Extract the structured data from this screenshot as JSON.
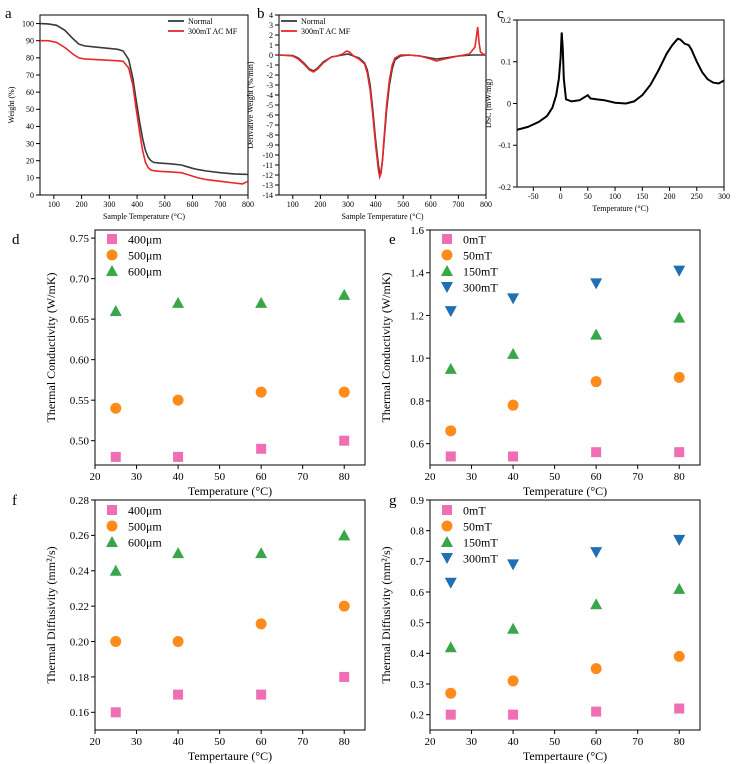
{
  "colors": {
    "normal": "#3a3a3a",
    "acmf": "#e8282b",
    "dsc": "#000000",
    "pink": "#f06eb4",
    "orange": "#ff8c1a",
    "green": "#3aa64a",
    "blue": "#1e6fb4"
  },
  "chart_data": [
    {
      "panel": "a",
      "type": "line",
      "xlabel": "Sample Temperature (°C)",
      "ylabel": "Weight (%)",
      "xlim": [
        50,
        800
      ],
      "ylim": [
        0,
        105
      ],
      "xticks": [
        100,
        200,
        300,
        400,
        500,
        600,
        700,
        800
      ],
      "yticks": [
        0,
        10,
        20,
        30,
        40,
        50,
        60,
        70,
        80,
        90,
        100
      ],
      "legend": "top-right",
      "series": [
        {
          "name": "Normal",
          "color_key": "normal",
          "x": [
            50,
            80,
            110,
            140,
            170,
            190,
            210,
            250,
            300,
            330,
            350,
            370,
            385,
            395,
            410,
            420,
            430,
            440,
            450,
            460,
            480,
            520,
            560,
            580,
            600,
            620,
            650,
            700,
            750,
            800
          ],
          "y": [
            100,
            99.8,
            99,
            96,
            91,
            88,
            87,
            86.3,
            85.5,
            85,
            84,
            79,
            68,
            57,
            42,
            33,
            26,
            22,
            20,
            19,
            18.6,
            18.2,
            17.5,
            16.5,
            15.6,
            14.8,
            14,
            13,
            12.3,
            12
          ]
        },
        {
          "name": "300mT AC MF",
          "color_key": "acmf",
          "x": [
            50,
            80,
            110,
            140,
            170,
            190,
            210,
            250,
            300,
            330,
            350,
            370,
            385,
            395,
            410,
            420,
            430,
            440,
            450,
            460,
            480,
            520,
            560,
            580,
            600,
            620,
            650,
            700,
            750,
            780,
            800
          ],
          "y": [
            90,
            90,
            89,
            86,
            82,
            80,
            79.4,
            79,
            78.6,
            78.3,
            78,
            74,
            64,
            52,
            36,
            26,
            19,
            16,
            14.6,
            14.2,
            13.8,
            13.5,
            13,
            12,
            11,
            10,
            9,
            8,
            7,
            6.5,
            8
          ]
        }
      ]
    },
    {
      "panel": "b",
      "type": "line",
      "xlabel": "Sample Temperature (°C)",
      "ylabel": "Derivative Weight (%/min)",
      "xlim": [
        50,
        800
      ],
      "ylim": [
        -14,
        4
      ],
      "xticks": [
        100,
        200,
        300,
        400,
        500,
        600,
        700,
        800
      ],
      "yticks": [
        -14,
        -13,
        -12,
        -11,
        -10,
        -9,
        -8,
        -7,
        -6,
        -5,
        -4,
        -3,
        -2,
        -1,
        0,
        1,
        2,
        3,
        4
      ],
      "legend": "top-left",
      "series": [
        {
          "name": "Normal",
          "color_key": "normal",
          "x": [
            50,
            100,
            120,
            140,
            160,
            175,
            190,
            210,
            240,
            260,
            280,
            300,
            320,
            340,
            360,
            370,
            380,
            390,
            400,
            410,
            415,
            420,
            425,
            430,
            440,
            450,
            460,
            470,
            490,
            520,
            560,
            600,
            620,
            650,
            700,
            750,
            780,
            800
          ],
          "y": [
            0,
            -0.05,
            -0.3,
            -0.8,
            -1.4,
            -1.6,
            -1.3,
            -0.7,
            -0.2,
            -0.1,
            0,
            0.1,
            -0.1,
            -0.3,
            -0.8,
            -1.5,
            -3,
            -5.5,
            -8.5,
            -11,
            -11.8,
            -11.6,
            -10.5,
            -8.8,
            -5.5,
            -3,
            -1.4,
            -0.5,
            -0.1,
            0,
            -0.1,
            -0.3,
            -0.4,
            -0.3,
            -0.1,
            0,
            0,
            0
          ]
        },
        {
          "name": "300mT AC MF",
          "color_key": "acmf",
          "x": [
            50,
            100,
            120,
            140,
            160,
            175,
            190,
            210,
            240,
            260,
            280,
            295,
            305,
            320,
            340,
            360,
            370,
            380,
            390,
            400,
            410,
            415,
            420,
            425,
            430,
            440,
            450,
            460,
            470,
            490,
            520,
            560,
            600,
            620,
            650,
            700,
            740,
            760,
            770,
            775,
            780,
            790,
            800
          ],
          "y": [
            0,
            -0.1,
            -0.4,
            -0.9,
            -1.5,
            -1.7,
            -1.4,
            -0.8,
            -0.2,
            -0.1,
            0.1,
            0.4,
            0.3,
            -0.1,
            -0.4,
            -0.9,
            -1.8,
            -3.5,
            -6,
            -9,
            -11.5,
            -12.2,
            -11.8,
            -10.5,
            -8.5,
            -5,
            -2.5,
            -1,
            -0.3,
            0,
            0,
            -0.1,
            -0.4,
            -0.6,
            -0.4,
            -0.1,
            0.1,
            0.8,
            2.8,
            1.2,
            0.3,
            0.1,
            0
          ]
        }
      ]
    },
    {
      "panel": "c",
      "type": "line",
      "xlabel": "Temperature (°C)",
      "ylabel": "DSC (mW/mg)",
      "xlim": [
        -80,
        300
      ],
      "ylim": [
        -0.2,
        0.2
      ],
      "xticks": [
        -50,
        0,
        50,
        100,
        150,
        200,
        250,
        300
      ],
      "yticks": [
        -0.2,
        -0.1,
        0.0,
        0.1,
        0.2
      ],
      "series": [
        {
          "name": "",
          "color_key": "dsc",
          "x": [
            -80,
            -60,
            -40,
            -25,
            -15,
            -8,
            -3,
            0,
            2,
            4,
            6,
            10,
            20,
            35,
            45,
            50,
            55,
            65,
            80,
            100,
            120,
            135,
            150,
            165,
            180,
            195,
            205,
            215,
            220,
            228,
            235,
            240,
            250,
            260,
            270,
            280,
            290,
            300
          ],
          "y": [
            -0.063,
            -0.056,
            -0.044,
            -0.03,
            -0.01,
            0.02,
            0.06,
            0.11,
            0.17,
            0.13,
            0.06,
            0.01,
            0.005,
            0.008,
            0.016,
            0.02,
            0.012,
            0.01,
            0.008,
            0.002,
            0,
            0.005,
            0.02,
            0.045,
            0.08,
            0.12,
            0.14,
            0.155,
            0.153,
            0.143,
            0.14,
            0.13,
            0.1,
            0.075,
            0.058,
            0.05,
            0.048,
            0.055
          ]
        }
      ]
    },
    {
      "panel": "d",
      "type": "scatter",
      "xlabel": "Temperature (°C)",
      "ylabel": "Thermal Conductivity (W/mK)",
      "xlim": [
        20,
        85
      ],
      "ylim": [
        0.47,
        0.76
      ],
      "xticks": [
        20,
        30,
        40,
        50,
        60,
        70,
        80
      ],
      "yticks": [
        0.5,
        0.55,
        0.6,
        0.65,
        0.7,
        0.75
      ],
      "ytick_labels": [
        "0.50",
        "0.55",
        "0.60",
        "0.65",
        "0.70",
        "0.75"
      ],
      "legend": "top-left",
      "series": [
        {
          "name": "400μm",
          "marker": "square",
          "color_key": "pink",
          "x": [
            25,
            40,
            60,
            80
          ],
          "y": [
            0.48,
            0.48,
            0.49,
            0.5
          ]
        },
        {
          "name": "500μm",
          "marker": "circle",
          "color_key": "orange",
          "x": [
            25,
            40,
            60,
            80
          ],
          "y": [
            0.54,
            0.55,
            0.56,
            0.56
          ]
        },
        {
          "name": "600μm",
          "marker": "triangle-up",
          "color_key": "green",
          "x": [
            25,
            40,
            60,
            80
          ],
          "y": [
            0.66,
            0.67,
            0.67,
            0.68
          ]
        }
      ]
    },
    {
      "panel": "e",
      "type": "scatter",
      "xlabel": "Temperature (°C)",
      "ylabel": "Thermal Conductivity (W/mK)",
      "xlim": [
        20,
        85
      ],
      "ylim": [
        0.5,
        1.6
      ],
      "xticks": [
        20,
        30,
        40,
        50,
        60,
        70,
        80
      ],
      "yticks": [
        0.6,
        0.8,
        1.0,
        1.2,
        1.4,
        1.6
      ],
      "ytick_labels": [
        "0.6",
        "0.8",
        "1.0",
        "1.2",
        "1.4",
        "1.6"
      ],
      "legend": "top-left",
      "series": [
        {
          "name": "0mT",
          "marker": "square",
          "color_key": "pink",
          "x": [
            25,
            40,
            60,
            80
          ],
          "y": [
            0.54,
            0.54,
            0.56,
            0.56
          ]
        },
        {
          "name": "50mT",
          "marker": "circle",
          "color_key": "orange",
          "x": [
            25,
            40,
            60,
            80
          ],
          "y": [
            0.66,
            0.78,
            0.89,
            0.91
          ]
        },
        {
          "name": "150mT",
          "marker": "triangle-up",
          "color_key": "green",
          "x": [
            25,
            40,
            60,
            80
          ],
          "y": [
            0.95,
            1.02,
            1.11,
            1.19
          ]
        },
        {
          "name": "300mT",
          "marker": "triangle-down",
          "color_key": "blue",
          "x": [
            25,
            40,
            60,
            80
          ],
          "y": [
            1.22,
            1.28,
            1.35,
            1.41
          ]
        }
      ]
    },
    {
      "panel": "f",
      "type": "scatter",
      "xlabel": "Tempertaure (°C)",
      "ylabel": "Thermal Diffusivity (mm²/s)",
      "xlim": [
        20,
        85
      ],
      "ylim": [
        0.15,
        0.28
      ],
      "xticks": [
        20,
        30,
        40,
        50,
        60,
        70,
        80
      ],
      "yticks": [
        0.16,
        0.18,
        0.2,
        0.22,
        0.24,
        0.26,
        0.28
      ],
      "ytick_labels": [
        "0.16",
        "0.18",
        "0.20",
        "0.22",
        "0.24",
        "0.26",
        "0.28"
      ],
      "legend": "top-left",
      "series": [
        {
          "name": "400μm",
          "marker": "square",
          "color_key": "pink",
          "x": [
            25,
            40,
            60,
            80
          ],
          "y": [
            0.16,
            0.17,
            0.17,
            0.18
          ]
        },
        {
          "name": "500μm",
          "marker": "circle",
          "color_key": "orange",
          "x": [
            25,
            40,
            60,
            80
          ],
          "y": [
            0.2,
            0.2,
            0.21,
            0.22
          ]
        },
        {
          "name": "600μm",
          "marker": "triangle-up",
          "color_key": "green",
          "x": [
            25,
            40,
            60,
            80
          ],
          "y": [
            0.24,
            0.25,
            0.25,
            0.26
          ]
        }
      ]
    },
    {
      "panel": "g",
      "type": "scatter",
      "xlabel": "Tempertaure (°C)",
      "ylabel": "Thermal Diffusivity (mm²/s)",
      "xlim": [
        20,
        85
      ],
      "ylim": [
        0.15,
        0.9
      ],
      "xticks": [
        20,
        30,
        40,
        50,
        60,
        70,
        80
      ],
      "yticks": [
        0.2,
        0.3,
        0.4,
        0.5,
        0.6,
        0.7,
        0.8,
        0.9
      ],
      "ytick_labels": [
        "0.2",
        "0.3",
        "0.4",
        "0.5",
        "0.6",
        "0.7",
        "0.8",
        "0.9"
      ],
      "legend": "top-left",
      "series": [
        {
          "name": "0mT",
          "marker": "square",
          "color_key": "pink",
          "x": [
            25,
            40,
            60,
            80
          ],
          "y": [
            0.2,
            0.2,
            0.21,
            0.22
          ]
        },
        {
          "name": "50mT",
          "marker": "circle",
          "color_key": "orange",
          "x": [
            25,
            40,
            60,
            80
          ],
          "y": [
            0.27,
            0.31,
            0.35,
            0.39
          ]
        },
        {
          "name": "150mT",
          "marker": "triangle-up",
          "color_key": "green",
          "x": [
            25,
            40,
            60,
            80
          ],
          "y": [
            0.42,
            0.48,
            0.56,
            0.61
          ]
        },
        {
          "name": "300mT",
          "marker": "triangle-down",
          "color_key": "blue",
          "x": [
            25,
            40,
            60,
            80
          ],
          "y": [
            0.63,
            0.69,
            0.73,
            0.77
          ]
        }
      ]
    }
  ]
}
